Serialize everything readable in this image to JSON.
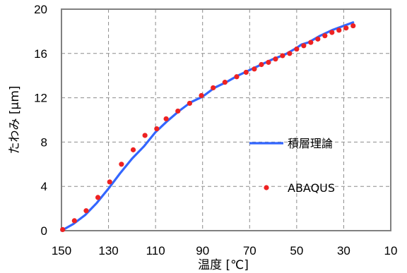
{
  "chart_data": {
    "type": "line",
    "xlabel": "温度 [℃]",
    "ylabel": "たわみ [μm]",
    "x_reversed": true,
    "xlim": [
      150,
      10
    ],
    "ylim": [
      0,
      20
    ],
    "x_ticks": [
      "150",
      "130",
      "110",
      "90",
      "70",
      "50",
      "30",
      "10"
    ],
    "x_tick_values": [
      150,
      130,
      110,
      90,
      70,
      50,
      30,
      10
    ],
    "y_ticks": [
      "0",
      "4",
      "8",
      "12",
      "16",
      "20"
    ],
    "y_tick_values": [
      0,
      4,
      8,
      12,
      16,
      20
    ],
    "grid": true,
    "legend_position": "right",
    "series": [
      {
        "name": "積層理論",
        "style": "line",
        "color": "#3366ff",
        "x": [
          150,
          145,
          140,
          135,
          130,
          125,
          120,
          115,
          110,
          105,
          100,
          95,
          90,
          85,
          80,
          75,
          73,
          70,
          65,
          60,
          55,
          50,
          48,
          45,
          40,
          35,
          30,
          26
        ],
        "y": [
          0,
          0.6,
          1.4,
          2.5,
          3.8,
          5.2,
          6.5,
          7.6,
          8.9,
          9.9,
          10.8,
          11.6,
          12.1,
          12.9,
          13.4,
          14.0,
          14.2,
          14.5,
          15.0,
          15.5,
          15.9,
          16.5,
          16.8,
          17.0,
          17.6,
          18.1,
          18.5,
          18.8
        ]
      },
      {
        "name": "ABAQUS",
        "style": "markers",
        "color": "#ee2222",
        "x": [
          149.5,
          144.5,
          139.5,
          134.5,
          129.5,
          124.5,
          119.5,
          114.5,
          109.5,
          105.5,
          100.5,
          95.5,
          90.5,
          85.5,
          80.5,
          75.5,
          71.5,
          68,
          65,
          62,
          59,
          56,
          53,
          50,
          47,
          44,
          41,
          38,
          35,
          32,
          29,
          26
        ],
        "y": [
          0.1,
          0.9,
          1.8,
          3.0,
          4.4,
          6.0,
          7.3,
          8.6,
          9.2,
          10.1,
          10.8,
          11.5,
          12.2,
          12.9,
          13.4,
          13.9,
          14.3,
          14.6,
          15.0,
          15.2,
          15.5,
          15.8,
          16.0,
          16.4,
          16.7,
          17.0,
          17.3,
          17.6,
          17.9,
          18.1,
          18.3,
          18.5
        ]
      }
    ]
  }
}
